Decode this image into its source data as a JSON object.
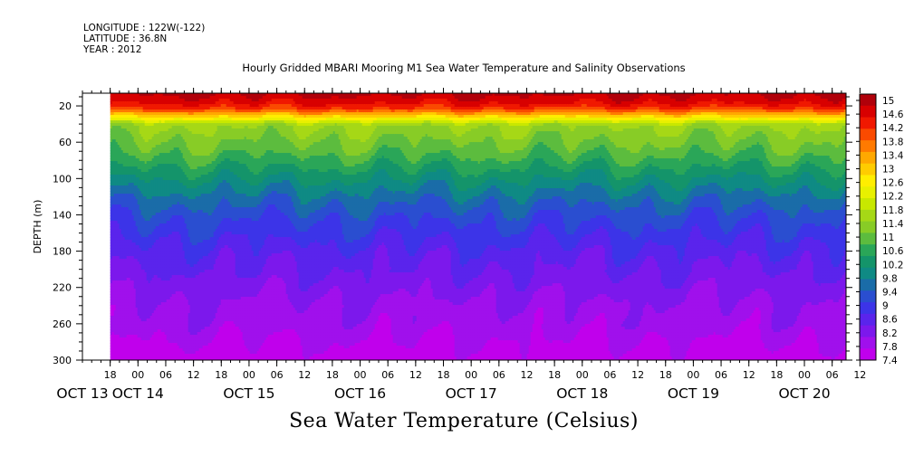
{
  "header": {
    "longitude": "LONGITUDE : 122W(-122)",
    "latitude": "LATITUDE : 36.8N",
    "year": "YEAR : 2012"
  },
  "chart_data": {
    "type": "heatmap",
    "title": "Hourly Gridded MBARI Mooring M1 Sea Water Temperature and Salinity Observations",
    "subtitle": "Sea Water Temperature (Celsius)",
    "ylabel": "DEPTH (m)",
    "x_axis": {
      "hour_ticks": [
        "18",
        "00",
        "06",
        "12",
        "18",
        "00",
        "06",
        "12",
        "18",
        "00",
        "06",
        "12",
        "18",
        "00",
        "06",
        "12",
        "18",
        "00",
        "06",
        "12",
        "18",
        "00",
        "06",
        "12",
        "18",
        "00",
        "06",
        "12"
      ],
      "date_labels": [
        "OCT 13",
        "OCT 14",
        "OCT 15",
        "OCT 16",
        "OCT 17",
        "OCT 18",
        "OCT 19",
        "OCT 20"
      ],
      "range_hours_from_oct13_00": [
        12,
        177
      ],
      "data_start_hours": 18
    },
    "y_axis": {
      "ticks": [
        20,
        60,
        100,
        140,
        180,
        220,
        260,
        300
      ],
      "range": [
        6,
        300
      ],
      "inverted": true
    },
    "colorbar": {
      "labels": [
        "15",
        "14.6",
        "14.2",
        "13.8",
        "13.4",
        "13",
        "12.6",
        "12.2",
        "11.8",
        "11.4",
        "11",
        "10.6",
        "10.2",
        "9.8",
        "9.4",
        "9",
        "8.6",
        "8.2",
        "7.8",
        "7.4"
      ],
      "min": 7.4,
      "max": 15.2,
      "colors": [
        "#b0000a",
        "#d80000",
        "#f01800",
        "#fa4a00",
        "#ff7a00",
        "#ffa800",
        "#ffcc00",
        "#ffee00",
        "#e8f000",
        "#c8e800",
        "#a6d816",
        "#88cc26",
        "#5cbc3e",
        "#2aa658",
        "#14946a",
        "#0f8a84",
        "#1a6ca8",
        "#2a4ed0",
        "#3c34e8",
        "#5a24ec",
        "#7c18ec",
        "#a010ec",
        "#c000ec"
      ]
    },
    "profile": {
      "depths": [
        6,
        15,
        22,
        28,
        32,
        36,
        40,
        55,
        70,
        85,
        100,
        120,
        140,
        160,
        180,
        200,
        220,
        240,
        260,
        280,
        300
      ],
      "temps": [
        14.9,
        14.6,
        14.1,
        13.2,
        12.6,
        12.0,
        11.5,
        11.2,
        10.9,
        10.5,
        10.1,
        9.6,
        9.2,
        8.9,
        8.6,
        8.4,
        8.2,
        8.0,
        7.9,
        7.7,
        7.5
      ]
    }
  }
}
